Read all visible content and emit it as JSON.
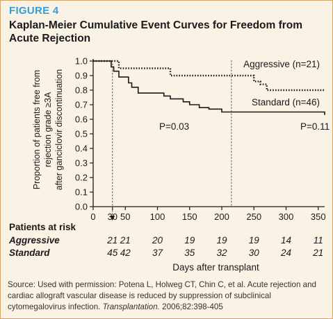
{
  "figure": {
    "label": "FIGURE 4",
    "title": "Kaplan-Meier Cumulative Event Curves for Freedom from Acute Rejection"
  },
  "chart_data": {
    "type": "line",
    "title": "Kaplan-Meier Cumulative Event Curves for Freedom from Acute Rejection",
    "xlabel": "Days after transplant",
    "ylabel_lines": [
      "Proportion of patients free from",
      "rejection grade ≥3A",
      "after ganciclovir discontinuation"
    ],
    "xlim": [
      0,
      360
    ],
    "ylim": [
      0,
      1.0
    ],
    "xticks": [
      0,
      30,
      50,
      100,
      150,
      200,
      250,
      300,
      350
    ],
    "xtick_labels": [
      "0",
      "30",
      "50",
      "100",
      "150",
      "200",
      "250",
      "300",
      "350"
    ],
    "yticks": [
      0.0,
      0.1,
      0.2,
      0.3,
      0.4,
      0.5,
      0.6,
      0.7,
      0.8,
      0.9,
      1.0
    ],
    "ytick_labels": [
      "0.0",
      "0.1",
      "0.2",
      "0.3",
      "0.4",
      "0.5",
      "0.6",
      "0.7",
      "0.8",
      "0.9",
      "1.0"
    ],
    "grid": false,
    "series": [
      {
        "name": "Aggressive (n=21)",
        "style": "dotted",
        "x": [
          0,
          30,
          40,
          120,
          250,
          260,
          270,
          360
        ],
        "y": [
          1.0,
          1.0,
          0.95,
          0.9,
          0.86,
          0.84,
          0.8,
          0.8
        ]
      },
      {
        "name": "Standard (n=46)",
        "style": "solid",
        "x": [
          0,
          28,
          32,
          40,
          55,
          60,
          70,
          95,
          110,
          120,
          130,
          140,
          150,
          165,
          180,
          200,
          360
        ],
        "y": [
          1.0,
          0.96,
          0.93,
          0.89,
          0.85,
          0.82,
          0.78,
          0.78,
          0.76,
          0.74,
          0.74,
          0.72,
          0.7,
          0.68,
          0.67,
          0.65,
          0.63
        ]
      }
    ],
    "vertical_markers": [
      30,
      215
    ],
    "annotations": [
      {
        "text": "P=0.03",
        "x": 110,
        "y": 0.55
      },
      {
        "text": "P=0.11",
        "x": 300,
        "y": 0.55
      }
    ],
    "at_risk": {
      "title": "Patients at risk",
      "days": [
        30,
        50,
        100,
        150,
        200,
        250,
        300,
        350
      ],
      "rows": [
        {
          "label": "Aggressive",
          "values": [
            "21",
            "21",
            "20",
            "19",
            "19",
            "19",
            "14",
            "11"
          ]
        },
        {
          "label": "Standard",
          "values": [
            "45",
            "42",
            "37",
            "35",
            "32",
            "30",
            "24",
            "21"
          ]
        }
      ]
    }
  },
  "source": {
    "text": "Source: Used with permission: Potena L, Holweg CT, Chin C, et al. Acute rejection and cardiac allograft vascular disease is reduced by suppression of subclinical cytomegalovirus infection. ",
    "journal": "Transplantation.",
    "citation_rest": " 2006;82:398-405"
  },
  "colors": {
    "label_blue": "#2f9fd8",
    "background": "#fbf2e6",
    "ink": "#1a1a1a"
  }
}
